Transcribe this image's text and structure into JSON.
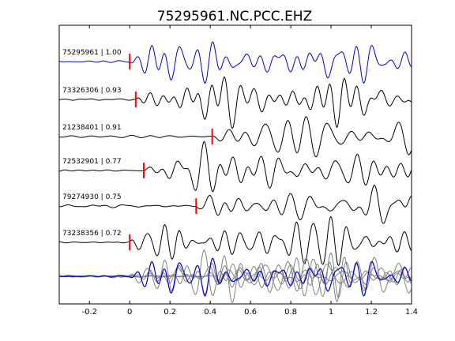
{
  "chart_data": {
    "type": "line",
    "title": "75295961.NC.PCC.EHZ",
    "xlabel": "",
    "ylabel": "",
    "xlim": [
      -0.35,
      1.4
    ],
    "xticks": [
      -0.2,
      0,
      0.2,
      0.4,
      0.6,
      0.8,
      1,
      1.2,
      1.4
    ],
    "xtick_labels": [
      "-0.2",
      "0",
      "0.2",
      "0.4",
      "0.6",
      "0.8",
      "1",
      "1.2",
      "1.4"
    ],
    "grid": false,
    "colors": {
      "reference": "#0000cc",
      "trace": "#000000",
      "pick": "#ff0000",
      "stack_other": "#808080"
    },
    "traces": [
      {
        "label": "75295961 | 1.00",
        "event_id": "75295961",
        "correlation": 1.0,
        "pick_time": 0.0,
        "color": "#0000cc",
        "reference": true
      },
      {
        "label": "73326306 | 0.93",
        "event_id": "73326306",
        "correlation": 0.93,
        "pick_time": 0.03,
        "color": "#000000",
        "reference": false
      },
      {
        "label": "21238401 | 0.91",
        "event_id": "21238401",
        "correlation": 0.91,
        "pick_time": 0.41,
        "color": "#000000",
        "reference": false
      },
      {
        "label": "72532901 | 0.77",
        "event_id": "72532901",
        "correlation": 0.77,
        "pick_time": 0.07,
        "color": "#000000",
        "reference": false
      },
      {
        "label": "79274930 | 0.75",
        "event_id": "79274930",
        "correlation": 0.75,
        "pick_time": 0.33,
        "color": "#000000",
        "reference": false
      },
      {
        "label": "73238356 | 0.72",
        "event_id": "73238356",
        "correlation": 0.72,
        "pick_time": 0.0,
        "color": "#000000",
        "reference": false
      }
    ],
    "stack": {
      "reference_color": "#0000cc",
      "others_color": "#808080"
    }
  }
}
